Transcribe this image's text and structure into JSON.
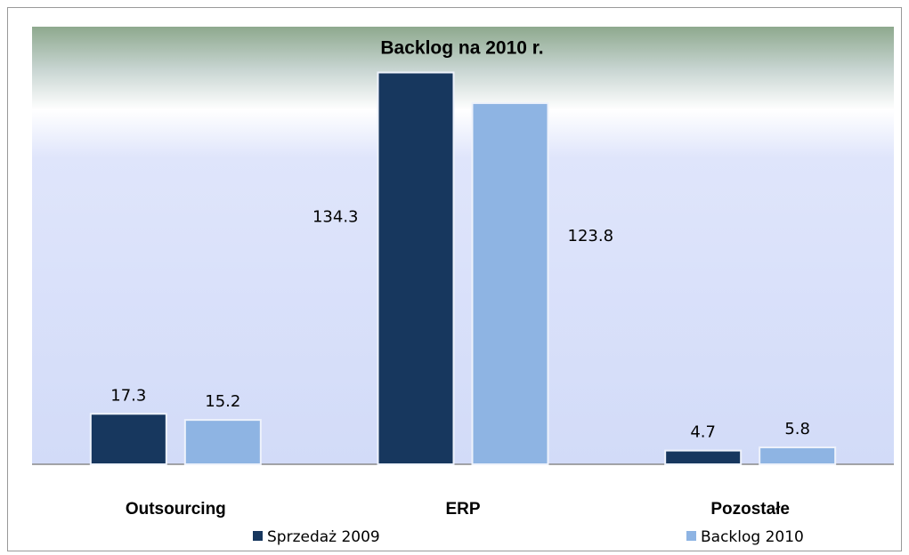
{
  "chart_data": {
    "type": "bar",
    "title": "Backlog na 2010 r.",
    "categories": [
      "Outsourcing",
      "ERP",
      "Pozostałe"
    ],
    "series": [
      {
        "name": "Sprzedaż 2009",
        "color": "#17375e",
        "values": [
          17.3,
          134.3,
          4.7
        ]
      },
      {
        "name": "Backlog 2010",
        "color": "#8eb4e3",
        "values": [
          15.2,
          123.8,
          5.8
        ]
      }
    ],
    "ylim": [
      0,
      150
    ]
  }
}
